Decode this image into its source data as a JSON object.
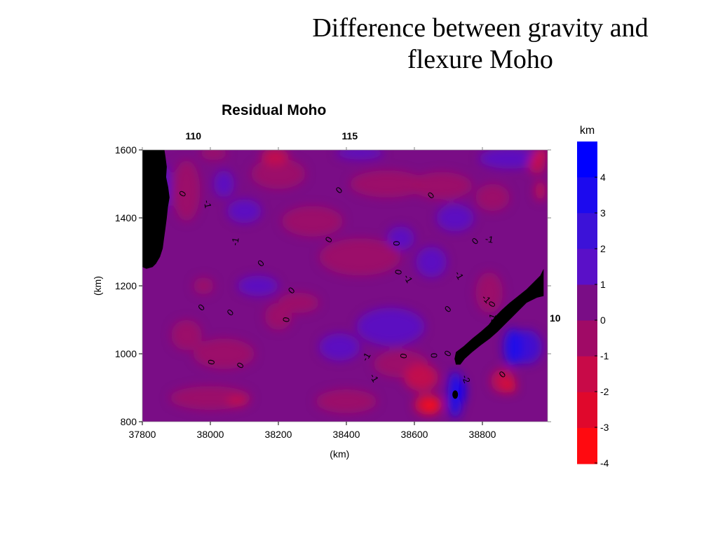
{
  "slide": {
    "title_line1": "Difference between gravity and",
    "title_line2": "flexure Moho"
  },
  "colors": {
    "field_base": "#7a0d86",
    "positive": "#5a10c8",
    "negative": "#b0105a",
    "mask": "#000000"
  },
  "chart_data": {
    "type": "heatmap",
    "title": "Residual Moho",
    "xlabel": "(km)",
    "ylabel": "(km)",
    "xlim": [
      37800,
      38990
    ],
    "ylim": [
      800,
      1600
    ],
    "x_ticks": [
      37800,
      38000,
      38200,
      38400,
      38600,
      38800
    ],
    "y_ticks": [
      800,
      1000,
      1200,
      1400,
      1600
    ],
    "top_axis_labels": [
      {
        "label": "110",
        "x": 37950
      },
      {
        "label": "115",
        "x": 38410
      }
    ],
    "right_axis_labels": [
      {
        "label": "10",
        "y": 1105
      }
    ],
    "colorbar": {
      "unit": "km",
      "levels": [
        4,
        3,
        2,
        1,
        0,
        -1,
        -2,
        -3,
        -4
      ],
      "colors": [
        "#0000ff",
        "#1c0aee",
        "#3c12d8",
        "#5a10c8",
        "#7a0d86",
        "#a00a66",
        "#c80a48",
        "#e0082c",
        "#ff0a10"
      ]
    },
    "contour_labels": [
      {
        "text": "0",
        "x": 37920,
        "y": 1470,
        "rot": -60
      },
      {
        "text": "-1",
        "x": 37990,
        "y": 1440,
        "rot": 80
      },
      {
        "text": "0",
        "x": 38380,
        "y": 1480,
        "rot": -45
      },
      {
        "text": "0",
        "x": 38650,
        "y": 1465,
        "rot": -45
      },
      {
        "text": "-1",
        "x": 38075,
        "y": 1330,
        "rot": -80
      },
      {
        "text": "0",
        "x": 38350,
        "y": 1335,
        "rot": -60
      },
      {
        "text": "0",
        "x": 38550,
        "y": 1325,
        "rot": -90
      },
      {
        "text": "0",
        "x": 38780,
        "y": 1330,
        "rot": -45
      },
      {
        "text": "-1",
        "x": 38820,
        "y": 1335,
        "rot": 10
      },
      {
        "text": "0",
        "x": 38150,
        "y": 1265,
        "rot": -45
      },
      {
        "text": "0",
        "x": 38555,
        "y": 1240,
        "rot": -80
      },
      {
        "text": "-1",
        "x": 38580,
        "y": 1220,
        "rot": 60
      },
      {
        "text": "-1",
        "x": 38730,
        "y": 1230,
        "rot": 60
      },
      {
        "text": "0",
        "x": 38240,
        "y": 1185,
        "rot": -45
      },
      {
        "text": "-1",
        "x": 38810,
        "y": 1160,
        "rot": 45
      },
      {
        "text": "0",
        "x": 38830,
        "y": 1145,
        "rot": -60
      },
      {
        "text": "0",
        "x": 37975,
        "y": 1135,
        "rot": -45
      },
      {
        "text": "0",
        "x": 38060,
        "y": 1120,
        "rot": -45
      },
      {
        "text": "0",
        "x": 38225,
        "y": 1100,
        "rot": -80
      },
      {
        "text": "0",
        "x": 38700,
        "y": 1130,
        "rot": -45
      },
      {
        "text": "-1",
        "x": 38830,
        "y": 1105,
        "rot": -70
      },
      {
        "text": "0",
        "x": 38700,
        "y": 1000,
        "rot": -60
      },
      {
        "text": "0",
        "x": 38660,
        "y": 995,
        "rot": -90
      },
      {
        "text": "0",
        "x": 38570,
        "y": 993,
        "rot": -80
      },
      {
        "text": "-1",
        "x": 38460,
        "y": 990,
        "rot": -60
      },
      {
        "text": "0",
        "x": 38005,
        "y": 975,
        "rot": -80
      },
      {
        "text": "0",
        "x": 38090,
        "y": 965,
        "rot": -60
      },
      {
        "text": "-1",
        "x": 38480,
        "y": 928,
        "rot": 60
      },
      {
        "text": "-2",
        "x": 38750,
        "y": 925,
        "rot": 70
      },
      {
        "text": "0",
        "x": 38860,
        "y": 938,
        "rot": -45
      }
    ],
    "anomalies": [
      {
        "x": 37860,
        "y": 1490,
        "rx": 25,
        "ry": 70,
        "value": 1
      },
      {
        "x": 38560,
        "y": 1340,
        "rx": 40,
        "ry": 35,
        "value": 1
      },
      {
        "x": 38650,
        "y": 1270,
        "rx": 45,
        "ry": 45,
        "value": 1
      },
      {
        "x": 38720,
        "y": 1400,
        "rx": 55,
        "ry": 40,
        "value": 1
      },
      {
        "x": 38530,
        "y": 1080,
        "rx": 100,
        "ry": 55,
        "value": 1
      },
      {
        "x": 38380,
        "y": 1020,
        "rx": 60,
        "ry": 40,
        "value": 1
      },
      {
        "x": 38100,
        "y": 1420,
        "rx": 50,
        "ry": 35,
        "value": 1
      },
      {
        "x": 38040,
        "y": 1500,
        "rx": 30,
        "ry": 40,
        "value": 1
      },
      {
        "x": 38440,
        "y": 1590,
        "rx": 70,
        "ry": 18,
        "value": 1
      },
      {
        "x": 38880,
        "y": 1575,
        "rx": 90,
        "ry": 30,
        "value": 1
      },
      {
        "x": 38140,
        "y": 1200,
        "rx": 60,
        "ry": 30,
        "value": 1
      },
      {
        "x": 38720,
        "y": 880,
        "rx": 22,
        "ry": 70,
        "value": 3
      },
      {
        "x": 38740,
        "y": 890,
        "rx": 10,
        "ry": 35,
        "value": 4
      },
      {
        "x": 38890,
        "y": 1020,
        "rx": 28,
        "ry": 55,
        "value": 3
      },
      {
        "x": 38930,
        "y": 1020,
        "rx": 45,
        "ry": 50,
        "value": 2
      },
      {
        "x": 37930,
        "y": 1480,
        "rx": 40,
        "ry": 90,
        "value": -1
      },
      {
        "x": 38010,
        "y": 1590,
        "rx": 40,
        "ry": 20,
        "value": -1
      },
      {
        "x": 38200,
        "y": 1530,
        "rx": 80,
        "ry": 45,
        "value": -1
      },
      {
        "x": 38520,
        "y": 1500,
        "rx": 110,
        "ry": 40,
        "value": -1
      },
      {
        "x": 38300,
        "y": 1390,
        "rx": 90,
        "ry": 45,
        "value": -1
      },
      {
        "x": 38680,
        "y": 1495,
        "rx": 90,
        "ry": 40,
        "value": -1
      },
      {
        "x": 38830,
        "y": 1460,
        "rx": 50,
        "ry": 40,
        "value": -1
      },
      {
        "x": 38440,
        "y": 1285,
        "rx": 120,
        "ry": 55,
        "value": -1
      },
      {
        "x": 37980,
        "y": 1200,
        "rx": 30,
        "ry": 25,
        "value": -1
      },
      {
        "x": 38260,
        "y": 1150,
        "rx": 60,
        "ry": 30,
        "value": -1
      },
      {
        "x": 38040,
        "y": 1000,
        "rx": 90,
        "ry": 45,
        "value": -1
      },
      {
        "x": 38560,
        "y": 970,
        "rx": 80,
        "ry": 40,
        "value": -1
      },
      {
        "x": 38000,
        "y": 870,
        "rx": 120,
        "ry": 35,
        "value": -1
      },
      {
        "x": 38400,
        "y": 860,
        "rx": 90,
        "ry": 35,
        "value": -1
      },
      {
        "x": 38820,
        "y": 1180,
        "rx": 40,
        "ry": 60,
        "value": -1
      },
      {
        "x": 37930,
        "y": 1055,
        "rx": 45,
        "ry": 45,
        "value": -1
      },
      {
        "x": 38200,
        "y": 1110,
        "rx": 40,
        "ry": 40,
        "value": -1
      },
      {
        "x": 38190,
        "y": 1580,
        "rx": 40,
        "ry": 25,
        "value": -2
      },
      {
        "x": 38080,
        "y": 860,
        "rx": 30,
        "ry": 15,
        "value": -2
      },
      {
        "x": 38620,
        "y": 930,
        "rx": 50,
        "ry": 40,
        "value": -2
      },
      {
        "x": 38640,
        "y": 850,
        "rx": 40,
        "ry": 30,
        "value": -3
      },
      {
        "x": 38650,
        "y": 845,
        "rx": 20,
        "ry": 18,
        "value": -4
      },
      {
        "x": 38860,
        "y": 920,
        "rx": 35,
        "ry": 35,
        "value": -2
      },
      {
        "x": 38880,
        "y": 905,
        "rx": 20,
        "ry": 20,
        "value": -3
      },
      {
        "x": 38960,
        "y": 1560,
        "rx": 25,
        "ry": 30,
        "value": -2
      },
      {
        "x": 38975,
        "y": 1590,
        "rx": 15,
        "ry": 10,
        "value": -4
      },
      {
        "x": 38970,
        "y": 1480,
        "rx": 15,
        "ry": 30,
        "value": -2
      }
    ],
    "data_gap_west": [
      [
        37800,
        1600
      ],
      [
        37865,
        1600
      ],
      [
        37868,
        1580
      ],
      [
        37872,
        1550
      ],
      [
        37870,
        1520
      ],
      [
        37876,
        1490
      ],
      [
        37880,
        1460
      ],
      [
        37875,
        1430
      ],
      [
        37872,
        1400
      ],
      [
        37868,
        1370
      ],
      [
        37864,
        1340
      ],
      [
        37860,
        1310
      ],
      [
        37852,
        1285
      ],
      [
        37840,
        1265
      ],
      [
        37830,
        1255
      ],
      [
        37812,
        1250
      ],
      [
        37800,
        1255
      ]
    ],
    "data_gap_east": [
      [
        38970,
        1230
      ],
      [
        38980,
        1250
      ],
      [
        38980,
        1200
      ],
      [
        38980,
        1170
      ],
      [
        38960,
        1165
      ],
      [
        38930,
        1150
      ],
      [
        38905,
        1125
      ],
      [
        38885,
        1105
      ],
      [
        38865,
        1085
      ],
      [
        38845,
        1065
      ],
      [
        38822,
        1045
      ],
      [
        38795,
        1025
      ],
      [
        38770,
        1005
      ],
      [
        38748,
        985
      ],
      [
        38735,
        968
      ],
      [
        38722,
        968
      ],
      [
        38718,
        985
      ],
      [
        38722,
        1005
      ],
      [
        38745,
        1022
      ],
      [
        38770,
        1045
      ],
      [
        38795,
        1065
      ],
      [
        38818,
        1085
      ],
      [
        38838,
        1110
      ],
      [
        38858,
        1130
      ],
      [
        38880,
        1150
      ],
      [
        38905,
        1170
      ],
      [
        38930,
        1190
      ],
      [
        38950,
        1210
      ]
    ],
    "data_gap_spot": {
      "x": 38720,
      "y": 880
    }
  }
}
